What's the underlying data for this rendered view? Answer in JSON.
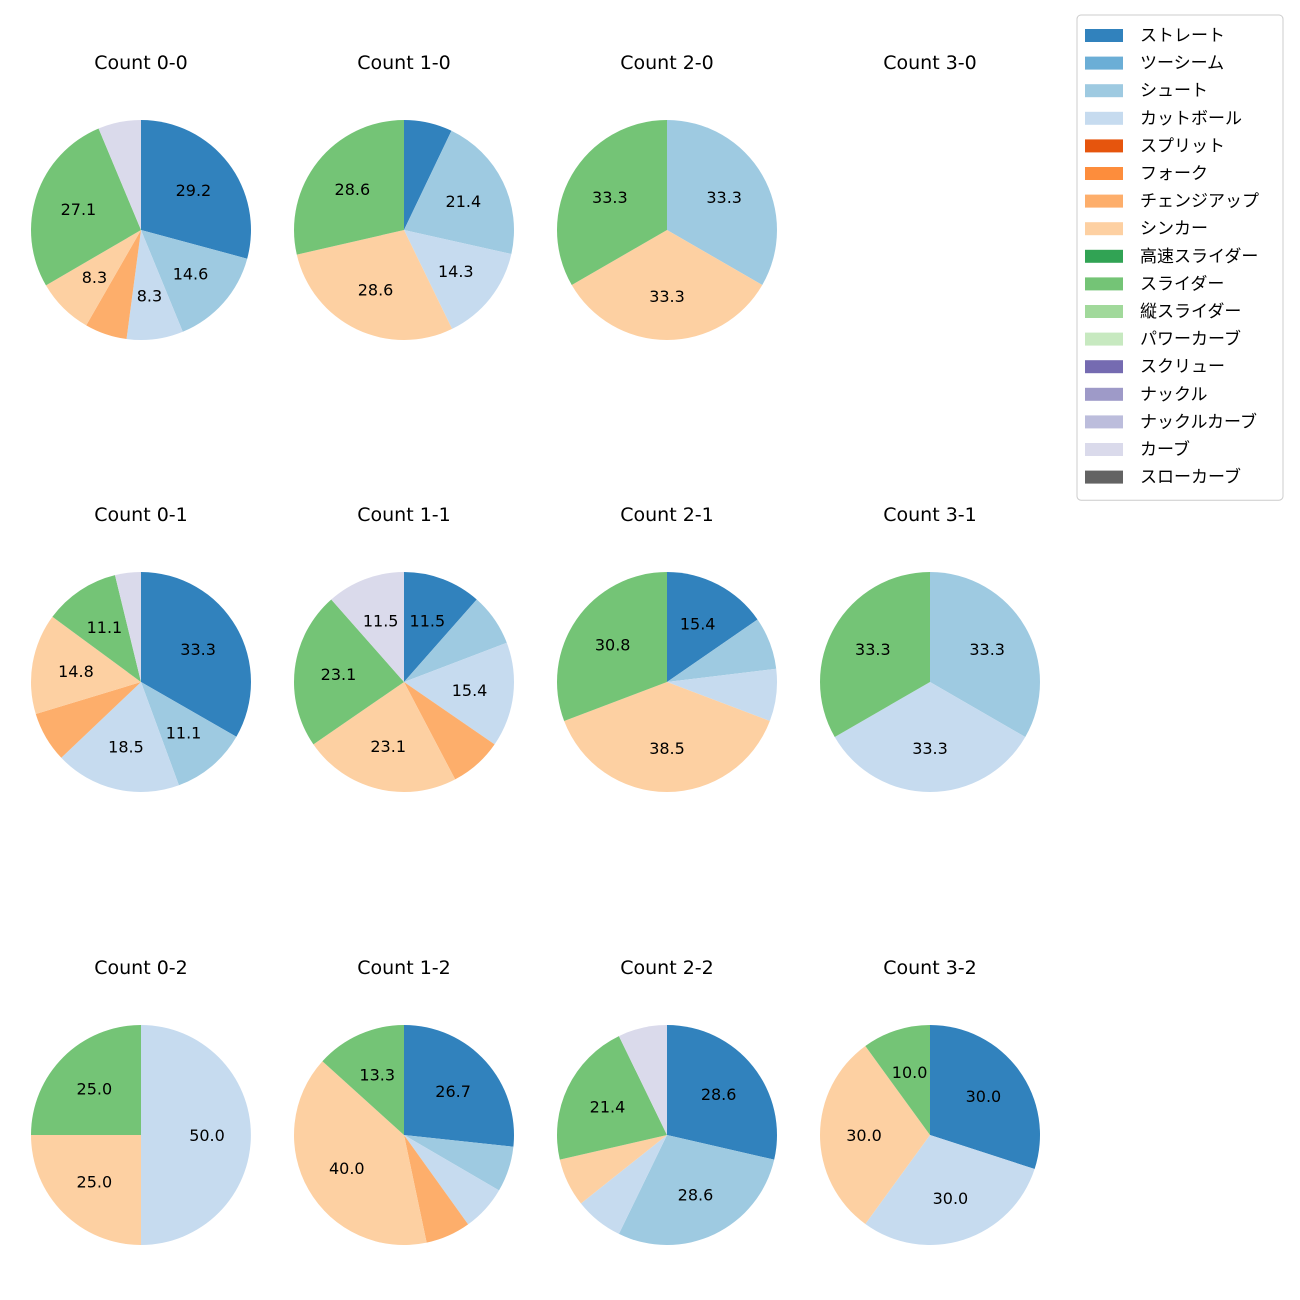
{
  "chart_data": {
    "type": "pie",
    "legend_position": "top-right",
    "legend": [
      {
        "name": "ストレート",
        "color": "#3182bd"
      },
      {
        "name": "ツーシーム",
        "color": "#6baed6"
      },
      {
        "name": "シュート",
        "color": "#9ecae1"
      },
      {
        "name": "カットボール",
        "color": "#c6dbef"
      },
      {
        "name": "スプリット",
        "color": "#e6550d"
      },
      {
        "name": "フォーク",
        "color": "#fd8d3c"
      },
      {
        "name": "チェンジアップ",
        "color": "#fdae6b"
      },
      {
        "name": "シンカー",
        "color": "#fdd0a2"
      },
      {
        "name": "高速スライダー",
        "color": "#31a354"
      },
      {
        "name": "スライダー",
        "color": "#74c476"
      },
      {
        "name": "縦スライダー",
        "color": "#a1d99b"
      },
      {
        "name": "パワーカーブ",
        "color": "#c7e9c0"
      },
      {
        "name": "スクリュー",
        "color": "#756bb1"
      },
      {
        "name": "ナックル",
        "color": "#9e9ac8"
      },
      {
        "name": "ナックルカーブ",
        "color": "#bcbddc"
      },
      {
        "name": "カーブ",
        "color": "#dadaeb"
      },
      {
        "name": "スローカーブ",
        "color": "#636363"
      }
    ],
    "pies": [
      {
        "title": "Count 0-0",
        "values": [
          29.2,
          0,
          14.6,
          8.3,
          0,
          0,
          6.2,
          8.3,
          0,
          27.1,
          0,
          0,
          0,
          0,
          0,
          6.3,
          0
        ],
        "labels": [
          "29.2",
          "",
          "14.6",
          "8.3",
          "",
          "",
          "",
          "8.3",
          "",
          "27.1",
          "",
          "",
          "",
          "",
          "",
          "",
          ""
        ]
      },
      {
        "title": "Count 1-0",
        "values": [
          7.1,
          0,
          21.4,
          14.3,
          0,
          0,
          0,
          28.6,
          0,
          28.6,
          0,
          0,
          0,
          0,
          0,
          0,
          0
        ],
        "labels": [
          "",
          "",
          "21.4",
          "14.3",
          "",
          "",
          "",
          "28.6",
          "",
          "28.6",
          "",
          "",
          "",
          "",
          "",
          "",
          ""
        ]
      },
      {
        "title": "Count 2-0",
        "values": [
          0,
          0,
          33.3,
          0,
          0,
          0,
          0,
          33.3,
          0,
          33.3,
          0,
          0,
          0,
          0,
          0,
          0,
          0
        ],
        "labels": [
          "",
          "",
          "33.3",
          "",
          "",
          "",
          "",
          "33.3",
          "",
          "33.3",
          "",
          "",
          "",
          "",
          "",
          "",
          ""
        ]
      },
      {
        "title": "Count 3-0",
        "values": [],
        "labels": []
      },
      {
        "title": "Count 0-1",
        "values": [
          33.3,
          0,
          11.1,
          18.5,
          0,
          0,
          7.4,
          14.8,
          0,
          11.1,
          0,
          0,
          0,
          0,
          0,
          3.8,
          0
        ],
        "labels": [
          "33.3",
          "",
          "11.1",
          "18.5",
          "",
          "",
          "",
          "14.8",
          "",
          "11.1",
          "",
          "",
          "",
          "",
          "",
          "",
          ""
        ]
      },
      {
        "title": "Count 1-1",
        "values": [
          11.5,
          0,
          7.7,
          15.4,
          0,
          0,
          7.7,
          23.1,
          0,
          23.1,
          0,
          0,
          0,
          0,
          0,
          11.5,
          0
        ],
        "labels": [
          "11.5",
          "",
          "",
          "15.4",
          "",
          "",
          "",
          "23.1",
          "",
          "23.1",
          "",
          "",
          "",
          "",
          "",
          "11.5",
          ""
        ]
      },
      {
        "title": "Count 2-1",
        "values": [
          15.4,
          0,
          7.7,
          7.7,
          0,
          0,
          0,
          38.5,
          0,
          30.8,
          0,
          0,
          0,
          0,
          0,
          0,
          0
        ],
        "labels": [
          "15.4",
          "",
          "",
          "",
          "",
          "",
          "",
          "38.5",
          "",
          "30.8",
          "",
          "",
          "",
          "",
          "",
          "",
          ""
        ]
      },
      {
        "title": "Count 3-1",
        "values": [
          0,
          0,
          33.3,
          33.3,
          0,
          0,
          0,
          0,
          0,
          33.3,
          0,
          0,
          0,
          0,
          0,
          0,
          0
        ],
        "labels": [
          "",
          "",
          "33.3",
          "33.3",
          "",
          "",
          "",
          "",
          "",
          "33.3",
          "",
          "",
          "",
          "",
          "",
          "",
          ""
        ]
      },
      {
        "title": "Count 0-2",
        "values": [
          0,
          0,
          0,
          50.0,
          0,
          0,
          0,
          25.0,
          0,
          25.0,
          0,
          0,
          0,
          0,
          0,
          0,
          0
        ],
        "labels": [
          "",
          "",
          "",
          "50.0",
          "",
          "",
          "",
          "25.0",
          "",
          "25.0",
          "",
          "",
          "",
          "",
          "",
          "",
          ""
        ]
      },
      {
        "title": "Count 1-2",
        "values": [
          26.7,
          0,
          6.7,
          6.7,
          0,
          0,
          6.6,
          40.0,
          0,
          13.3,
          0,
          0,
          0,
          0,
          0,
          0,
          0
        ],
        "labels": [
          "26.7",
          "",
          "",
          "",
          "",
          "",
          "",
          "40.0",
          "",
          "13.3",
          "",
          "",
          "",
          "",
          "",
          "",
          ""
        ]
      },
      {
        "title": "Count 2-2",
        "values": [
          28.6,
          0,
          28.6,
          7.1,
          0,
          0,
          0,
          7.1,
          0,
          21.4,
          0,
          0,
          0,
          0,
          0,
          7.2,
          0
        ],
        "labels": [
          "28.6",
          "",
          "28.6",
          "",
          "",
          "",
          "",
          "",
          "",
          "21.4",
          "",
          "",
          "",
          "",
          "",
          "",
          ""
        ]
      },
      {
        "title": "Count 3-2",
        "values": [
          30.0,
          0,
          0,
          30.0,
          0,
          0,
          0,
          30.0,
          0,
          10.0,
          0,
          0,
          0,
          0,
          0,
          0,
          0
        ],
        "labels": [
          "30.0",
          "",
          "",
          "30.0",
          "",
          "",
          "",
          "30.0",
          "",
          "10.0",
          "",
          "",
          "",
          "",
          "",
          "",
          ""
        ]
      }
    ]
  }
}
